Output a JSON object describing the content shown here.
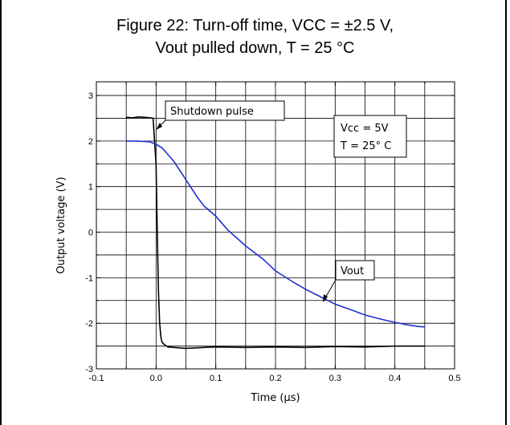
{
  "figure": {
    "title_line1": "Figure 22: Turn-off time, VCC = ±2.5 V,",
    "title_line2": "Vout pulled down, T = 25 °C"
  },
  "chart_data": {
    "type": "line",
    "xlabel": "Time (µs)",
    "ylabel": "Output  voltage (V)",
    "xlim": [
      -0.1,
      0.5
    ],
    "ylim": [
      -3,
      3.3
    ],
    "x_ticks": [
      "-0.1",
      "0.0",
      "0.1",
      "0.2",
      "0.3",
      "0.4",
      "0.5"
    ],
    "x_tick_values": [
      -0.1,
      0.0,
      0.1,
      0.2,
      0.3,
      0.4,
      0.5
    ],
    "y_ticks": [
      "-3",
      "-2",
      "-1",
      "0",
      "1",
      "2",
      "3"
    ],
    "y_tick_values": [
      -3,
      -2,
      -1,
      0,
      1,
      2,
      3
    ],
    "grid": true,
    "series": [
      {
        "color": "#000000",
        "x": [
          -0.05,
          -0.04,
          -0.03,
          -0.02,
          -0.01,
          -0.005,
          0.0,
          0.002,
          0.004,
          0.006,
          0.008,
          0.01,
          0.015,
          0.02,
          0.03,
          0.05,
          0.08,
          0.1,
          0.15,
          0.2,
          0.25,
          0.3,
          0.35,
          0.4,
          0.45
        ],
        "y": [
          2.52,
          2.51,
          2.53,
          2.52,
          2.51,
          2.5,
          1.5,
          0.0,
          -1.3,
          -2.0,
          -2.3,
          -2.42,
          -2.48,
          -2.52,
          -2.53,
          -2.55,
          -2.53,
          -2.52,
          -2.53,
          -2.52,
          -2.53,
          -2.51,
          -2.52,
          -2.5,
          -2.5
        ]
      },
      {
        "color": "#1f2fd0",
        "x": [
          -0.05,
          -0.03,
          -0.01,
          0.0,
          0.01,
          0.02,
          0.03,
          0.04,
          0.05,
          0.06,
          0.07,
          0.08,
          0.1,
          0.12,
          0.15,
          0.18,
          0.2,
          0.23,
          0.25,
          0.28,
          0.3,
          0.33,
          0.35,
          0.38,
          0.4,
          0.42,
          0.44,
          0.45
        ],
        "y": [
          2.0,
          2.0,
          1.98,
          1.93,
          1.85,
          1.7,
          1.55,
          1.35,
          1.15,
          0.95,
          0.75,
          0.58,
          0.35,
          0.05,
          -0.3,
          -0.6,
          -0.85,
          -1.1,
          -1.25,
          -1.45,
          -1.58,
          -1.72,
          -1.82,
          -1.92,
          -1.98,
          -2.03,
          -2.07,
          -2.08
        ]
      }
    ],
    "annotations": {
      "shutdown_pulse": "Shutdown pulse",
      "vout": "Vout",
      "vcc": "Vcc = 5V",
      "temp": "T =  25° C"
    }
  }
}
